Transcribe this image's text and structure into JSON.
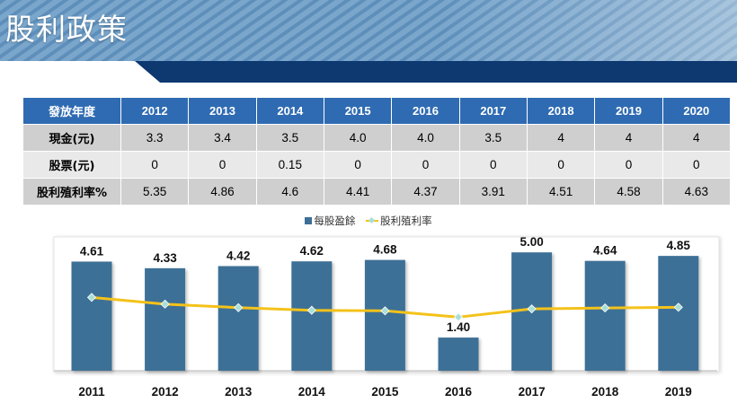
{
  "title": "股利政策",
  "colors": {
    "header_bg": "#2f6bb2",
    "bar": "#3d6f96",
    "line": "#f4c21a",
    "marker": "#a8e0d8",
    "banner_dark": "#0d3870",
    "banner_light": "#6c9ec6"
  },
  "table": {
    "header_label": "發放年度",
    "years": [
      "2012",
      "2013",
      "2014",
      "2015",
      "2016",
      "2017",
      "2018",
      "2019",
      "2020"
    ],
    "rows": [
      {
        "label": "現金(元)",
        "values": [
          "3.3",
          "3.4",
          "3.5",
          "4.0",
          "4.0",
          "3.5",
          "4",
          "4",
          "4"
        ]
      },
      {
        "label": "股票(元)",
        "values": [
          "0",
          "0",
          "0.15",
          "0",
          "0",
          "0",
          "0",
          "0",
          "0"
        ]
      },
      {
        "label": "股利殖利率%",
        "values": [
          "5.35",
          "4.86",
          "4.6",
          "4.41",
          "4.37",
          "3.91",
          "4.51",
          "4.58",
          "4.63"
        ]
      }
    ]
  },
  "chart_data": {
    "type": "bar",
    "categories": [
      "2011",
      "2012",
      "2013",
      "2014",
      "2015",
      "2016",
      "2017",
      "2018",
      "2019"
    ],
    "series": [
      {
        "name": "每股盈餘",
        "type": "bar",
        "values": [
          4.61,
          4.33,
          4.42,
          4.62,
          4.68,
          1.4,
          5.0,
          4.64,
          4.85
        ],
        "labels": [
          "4.61",
          "4.33",
          "4.42",
          "4.62",
          "4.68",
          "1.40",
          "5.00",
          "4.64",
          "4.85"
        ]
      },
      {
        "name": "股利殖利率",
        "type": "line",
        "values": [
          5.35,
          4.86,
          4.6,
          4.41,
          4.37,
          3.91,
          4.51,
          4.58,
          4.63
        ]
      }
    ],
    "legend": [
      "每股盈餘",
      "股利殖利率"
    ],
    "legend_position": "top",
    "ylim": [
      0,
      5.5
    ],
    "line_ylim": [
      0,
      9.5
    ],
    "grid": false
  }
}
